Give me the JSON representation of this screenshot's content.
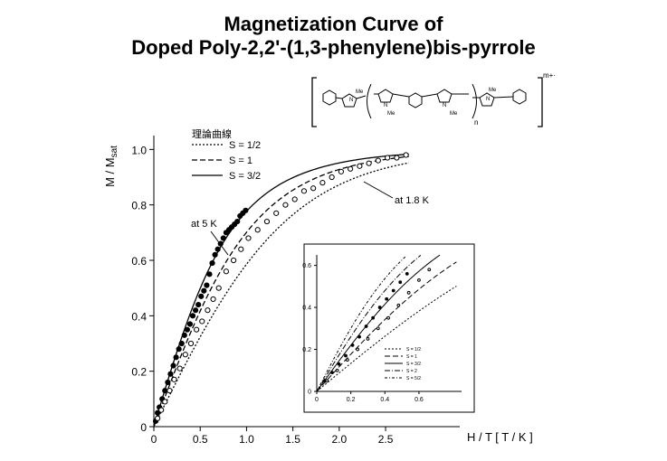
{
  "title_line1": "Magnetization Curve of",
  "title_line2": "Doped Poly-2,2'-(1,3-phenylene)bis-pyrrole",
  "structure": {
    "charge": "m+·",
    "subscript_n": "n",
    "me_label": "Me",
    "n_label": "N"
  },
  "legend": {
    "heading": "理論曲線",
    "items": [
      "S = 1/2",
      "S = 1",
      "S = 3/2"
    ]
  },
  "annotations": {
    "at_18K": "at 1.8 K",
    "at_5K": "at 5 K"
  },
  "axis": {
    "xlabel": "H / T [ T / K ]",
    "ylabel_main": "M / M",
    "ylabel_sub": "sat"
  },
  "inset": {
    "legend": [
      "S = 1/2",
      "S = 1",
      "S = 3/2",
      "S = 2",
      "S = 5/2"
    ]
  },
  "chart_data": [
    {
      "type": "line",
      "xlabel": "H / T [ T / K ]",
      "ylabel": "M / Msat",
      "xlim": [
        0,
        3.3
      ],
      "ylim": [
        0,
        1.05
      ],
      "x_ticks": [
        "0",
        "0.5",
        "1.0",
        "1.5",
        "2.0",
        "2.5"
      ],
      "x_tick_values": [
        0,
        0.5,
        1.0,
        1.5,
        2.0,
        2.5
      ],
      "y_ticks": [
        "0",
        "0.2",
        "0.4",
        "0.6",
        "0.8",
        "1.0"
      ],
      "y_tick_values": [
        0,
        0.2,
        0.4,
        0.6,
        0.8,
        1.0
      ],
      "legend_position": "top-left",
      "series": [
        {
          "name": "S = 1/2",
          "style": "dotted",
          "kind": "brillouin",
          "S": 0.5
        },
        {
          "name": "S = 1",
          "style": "dashed",
          "kind": "brillouin",
          "S": 1.0
        },
        {
          "name": "S = 3/2",
          "style": "solid",
          "kind": "brillouin",
          "S": 1.5
        },
        {
          "name": "at 5 K",
          "marker": "filled-circle",
          "x": [
            0.02,
            0.04,
            0.06,
            0.09,
            0.12,
            0.15,
            0.18,
            0.21,
            0.24,
            0.27,
            0.3,
            0.33,
            0.36,
            0.39,
            0.42,
            0.45,
            0.48,
            0.51,
            0.54,
            0.57,
            0.6,
            0.63,
            0.66,
            0.69,
            0.72,
            0.75,
            0.78,
            0.81,
            0.84,
            0.87,
            0.9,
            0.93,
            0.96,
            0.99
          ],
          "y": [
            0.02,
            0.05,
            0.07,
            0.1,
            0.13,
            0.16,
            0.19,
            0.22,
            0.25,
            0.28,
            0.3,
            0.33,
            0.35,
            0.37,
            0.4,
            0.42,
            0.44,
            0.47,
            0.49,
            0.51,
            0.55,
            0.59,
            0.62,
            0.64,
            0.66,
            0.68,
            0.7,
            0.71,
            0.72,
            0.73,
            0.74,
            0.76,
            0.77,
            0.78
          ]
        },
        {
          "name": "at 1.8 K",
          "marker": "open-circle",
          "x": [
            0.04,
            0.08,
            0.12,
            0.17,
            0.22,
            0.28,
            0.34,
            0.4,
            0.46,
            0.52,
            0.58,
            0.64,
            0.7,
            0.78,
            0.86,
            0.94,
            1.02,
            1.12,
            1.22,
            1.32,
            1.42,
            1.52,
            1.62,
            1.72,
            1.82,
            1.92,
            2.02,
            2.12,
            2.22,
            2.32,
            2.42,
            2.52,
            2.62,
            2.72
          ],
          "y": [
            0.03,
            0.06,
            0.09,
            0.13,
            0.17,
            0.21,
            0.26,
            0.3,
            0.35,
            0.38,
            0.42,
            0.46,
            0.5,
            0.56,
            0.6,
            0.64,
            0.68,
            0.71,
            0.74,
            0.77,
            0.8,
            0.82,
            0.85,
            0.86,
            0.88,
            0.9,
            0.92,
            0.93,
            0.94,
            0.95,
            0.96,
            0.97,
            0.97,
            0.98
          ]
        }
      ]
    },
    {
      "type": "line",
      "xlim": [
        0,
        0.85
      ],
      "ylim": [
        0,
        0.65
      ],
      "x_ticks": [
        "0",
        "0.2",
        "0.4",
        "0.6"
      ],
      "x_tick_values": [
        0,
        0.2,
        0.4,
        0.6
      ],
      "y_ticks": [
        "0",
        "0.2",
        "0.4",
        "0.6"
      ],
      "y_tick_values": [
        0,
        0.2,
        0.4,
        0.6
      ],
      "legend_position": "bottom-right",
      "series": [
        {
          "name": "S = 1/2",
          "style": "dotted",
          "kind": "brillouin",
          "S": 0.5
        },
        {
          "name": "S = 1",
          "style": "dashed",
          "kind": "brillouin",
          "S": 1.0
        },
        {
          "name": "S = 3/2",
          "style": "solid",
          "kind": "brillouin",
          "S": 1.5
        },
        {
          "name": "S = 2",
          "style": "dashdot",
          "kind": "brillouin",
          "S": 2.0
        },
        {
          "name": "S = 5/2",
          "style": "dashdot2",
          "kind": "brillouin",
          "S": 2.5
        },
        {
          "name": "at 5 K",
          "marker": "filled-circle",
          "x": [
            0.05,
            0.09,
            0.13,
            0.17,
            0.21,
            0.25,
            0.29,
            0.33,
            0.37,
            0.41,
            0.45,
            0.49,
            0.53
          ],
          "y": [
            0.05,
            0.09,
            0.13,
            0.17,
            0.22,
            0.26,
            0.31,
            0.35,
            0.4,
            0.44,
            0.48,
            0.52,
            0.56
          ]
        },
        {
          "name": "at 1.8 K",
          "marker": "open-circle",
          "x": [
            0.06,
            0.12,
            0.18,
            0.24,
            0.3,
            0.36,
            0.42,
            0.48,
            0.54,
            0.6,
            0.66
          ],
          "y": [
            0.05,
            0.1,
            0.15,
            0.2,
            0.25,
            0.3,
            0.35,
            0.41,
            0.47,
            0.53,
            0.58
          ]
        }
      ]
    }
  ]
}
